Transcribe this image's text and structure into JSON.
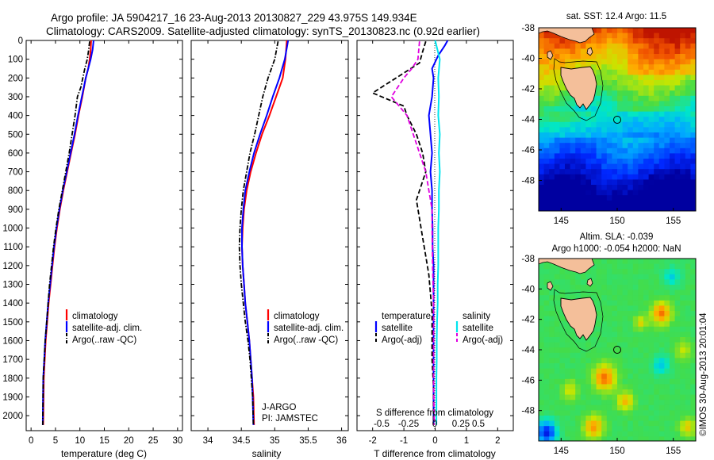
{
  "header": {
    "line1": "Argo profile: JA 5904217_16 23-Aug-2013 20130827_229 43.975S 149.934E",
    "line2": "Climatology: CARS2009. Satellite-adjusted climatology: synTS_20130823.nc (0.92d earlier)"
  },
  "side_stamp": "©IMOS 30-Aug-2013 20:01:04",
  "chart_data": [
    {
      "id": "temperature",
      "type": "line",
      "xlabel": "temperature (deg C)",
      "ylabel": "",
      "xlim": [
        -1,
        31
      ],
      "ylim": [
        2080,
        0
      ],
      "xticks": [
        0,
        5,
        10,
        15,
        20,
        25,
        30
      ],
      "yticks": [
        0,
        100,
        200,
        300,
        400,
        500,
        600,
        700,
        800,
        900,
        1000,
        1100,
        1200,
        1300,
        1400,
        1500,
        1600,
        1700,
        1800,
        1900,
        2000
      ],
      "legend": {
        "placement": "lower-center",
        "entries": [
          "climatology",
          "satellite-adj. clim.",
          "Argo(..raw -QC)"
        ]
      },
      "series": [
        {
          "name": "climatology",
          "color": "#ff0000",
          "style": "solid",
          "x": [
            12.3,
            12.2,
            12.0,
            11.7,
            11.2,
            10.5,
            9.7,
            9.0,
            8.2,
            7.4,
            6.6,
            5.9,
            5.3,
            4.8,
            4.4,
            4.0,
            3.6,
            3.3,
            3.0,
            2.8,
            2.6,
            2.5
          ],
          "y": [
            0,
            50,
            100,
            150,
            200,
            300,
            400,
            500,
            600,
            700,
            800,
            900,
            1000,
            1100,
            1200,
            1300,
            1400,
            1500,
            1600,
            1700,
            1800,
            2050
          ]
        },
        {
          "name": "satellite-adj. clim.",
          "color": "#0000ff",
          "style": "solid",
          "x": [
            12.8,
            12.6,
            12.2,
            11.7,
            11.2,
            10.4,
            9.6,
            8.9,
            8.1,
            7.3,
            6.5,
            5.8,
            5.2,
            4.7,
            4.3,
            3.9,
            3.5,
            3.2,
            2.9,
            2.7,
            2.5,
            2.4
          ],
          "y": [
            0,
            50,
            100,
            150,
            200,
            300,
            400,
            500,
            600,
            700,
            800,
            900,
            1000,
            1100,
            1200,
            1300,
            1400,
            1500,
            1600,
            1700,
            1800,
            2050
          ]
        },
        {
          "name": "Argo(..raw -QC)",
          "color": "#000000",
          "style": "dashdot",
          "x": [
            12.0,
            11.8,
            11.5,
            11.0,
            10.2,
            9.5,
            9.0,
            8.4,
            7.8,
            7.1,
            6.4,
            5.7,
            5.1,
            4.6,
            4.2,
            3.8,
            3.5,
            3.2,
            2.9,
            2.7,
            2.5,
            2.4
          ],
          "y": [
            5,
            50,
            100,
            150,
            250,
            300,
            400,
            500,
            600,
            700,
            800,
            900,
            1000,
            1100,
            1200,
            1300,
            1400,
            1500,
            1600,
            1700,
            1800,
            2050
          ]
        }
      ]
    },
    {
      "id": "salinity",
      "type": "line",
      "xlabel": "salinity",
      "ylabel": "",
      "xlim": [
        33.75,
        36.1
      ],
      "ylim": [
        2080,
        0
      ],
      "xticks": [
        34,
        34.5,
        35,
        35.5,
        36
      ],
      "legend": {
        "placement": "lower-center",
        "entries": [
          "climatology",
          "satellite-adj. clim.",
          "Argo(..raw -QC)"
        ]
      },
      "annotations": [
        "J-ARGO",
        "PI: JAMSTEC"
      ],
      "series": [
        {
          "name": "climatology",
          "color": "#ff0000",
          "style": "solid",
          "x": [
            35.18,
            35.16,
            35.12,
            35.02,
            34.92,
            34.81,
            34.72,
            34.64,
            34.58,
            34.54,
            34.52,
            34.51,
            34.52,
            34.54,
            34.56,
            34.59,
            34.62,
            34.64,
            34.66,
            34.68,
            34.69
          ],
          "y": [
            0,
            100,
            200,
            300,
            400,
            500,
            600,
            700,
            800,
            900,
            1000,
            1100,
            1200,
            1300,
            1400,
            1500,
            1600,
            1700,
            1800,
            1900,
            2050
          ]
        },
        {
          "name": "satellite-adj. clim.",
          "color": "#0000ff",
          "style": "solid",
          "x": [
            35.2,
            35.15,
            35.07,
            34.97,
            34.88,
            34.78,
            34.69,
            34.62,
            34.56,
            34.53,
            34.51,
            34.51,
            34.52,
            34.54,
            34.56,
            34.59,
            34.62,
            34.64,
            34.66,
            34.67,
            34.68
          ],
          "y": [
            0,
            100,
            200,
            300,
            400,
            500,
            600,
            700,
            800,
            900,
            1000,
            1100,
            1200,
            1300,
            1400,
            1500,
            1600,
            1700,
            1800,
            1900,
            2050
          ]
        },
        {
          "name": "Argo(..raw -QC)",
          "color": "#000000",
          "style": "dashdot",
          "x": [
            35.05,
            35.0,
            34.9,
            34.82,
            34.76,
            34.7,
            34.63,
            34.58,
            34.53,
            34.5,
            34.48,
            34.47,
            34.48,
            34.5,
            34.53,
            34.56,
            34.6,
            34.63,
            34.65,
            34.67,
            34.68
          ],
          "y": [
            5,
            100,
            200,
            300,
            400,
            500,
            600,
            700,
            800,
            900,
            1000,
            1100,
            1200,
            1300,
            1400,
            1500,
            1600,
            1700,
            1800,
            1900,
            2050
          ]
        }
      ]
    },
    {
      "id": "difference",
      "type": "line",
      "xlabel": "T difference from climatology",
      "xlabel_top": "S difference from climatology",
      "ylabel": "",
      "xlim": [
        -2.5,
        2.5
      ],
      "ylim": [
        2080,
        0
      ],
      "xticks": [
        -2,
        -1,
        0,
        1,
        2
      ],
      "xticklabels": [
        "-2",
        "-1",
        "0",
        "1",
        "2"
      ],
      "s_ticks": [
        "-0.5",
        "-0.25",
        "0",
        "0.25",
        "0.5"
      ],
      "legend": {
        "placement": "lower-center",
        "headers": [
          "temperature",
          "salinity"
        ],
        "entries": [
          "satellite",
          "Argo(-adj)",
          "satellite",
          "Argo(-adj)"
        ]
      },
      "series": [
        {
          "name": "temperature satellite",
          "color": "#0000ff",
          "style": "solid",
          "x": [
            0.4,
            0.3,
            0.1,
            -0.1,
            -0.05,
            -0.1,
            -0.2,
            -0.15,
            -0.1,
            -0.15,
            -0.1,
            -0.1,
            -0.08,
            -0.08,
            -0.05,
            -0.05,
            -0.05,
            -0.05,
            -0.05,
            -0.05,
            -0.05
          ],
          "y": [
            0,
            30,
            80,
            150,
            200,
            300,
            400,
            500,
            600,
            700,
            800,
            900,
            1000,
            1100,
            1200,
            1300,
            1400,
            1500,
            1600,
            1800,
            2050
          ]
        },
        {
          "name": "temperature Argo(-adj)",
          "color": "#000000",
          "style": "dashed",
          "x": [
            -0.3,
            -0.4,
            -0.5,
            -2.0,
            -1.0,
            -0.9,
            -0.6,
            -0.4,
            -0.3,
            -0.6,
            -0.5,
            -0.4,
            -0.3,
            -0.2,
            -0.15,
            -0.1,
            -0.1,
            -0.1,
            -0.05,
            -0.05
          ],
          "y": [
            5,
            60,
            120,
            280,
            350,
            400,
            500,
            600,
            700,
            850,
            950,
            1050,
            1150,
            1250,
            1350,
            1450,
            1550,
            1700,
            1850,
            2050
          ]
        },
        {
          "name": "salinity satellite",
          "color": "#00e5ee",
          "style": "solid",
          "x": [
            0.0,
            0.15,
            0.1,
            0.12,
            0.1,
            0.15,
            0.12,
            0.15,
            0.12,
            0.12,
            0.1,
            0.1,
            0.1,
            0.08,
            0.08,
            0.06,
            0.05,
            0.05,
            0.04,
            0.04
          ],
          "y": [
            0,
            100,
            200,
            300,
            400,
            500,
            600,
            700,
            800,
            900,
            1000,
            1100,
            1200,
            1300,
            1400,
            1500,
            1600,
            1700,
            1800,
            2050
          ]
        },
        {
          "name": "salinity Argo(-adj)",
          "color": "#e000e0",
          "style": "dashed",
          "x": [
            -0.5,
            -0.55,
            -0.75,
            -1.0,
            -1.4,
            -0.9,
            -0.7,
            -0.5,
            -0.3,
            -0.2,
            -0.1,
            -0.1,
            -0.08,
            -0.05,
            -0.05,
            -0.05,
            -0.03
          ],
          "y": [
            5,
            100,
            150,
            200,
            300,
            400,
            500,
            600,
            700,
            800,
            900,
            1000,
            1200,
            1400,
            1600,
            1800,
            2050
          ]
        }
      ]
    },
    {
      "id": "sst-map",
      "type": "heatmap",
      "title": "sat. SST: 12.4  Argo: 11.5",
      "xlim": [
        143,
        157
      ],
      "ylim": [
        -50,
        -38
      ],
      "xticks": [
        145,
        150,
        155
      ],
      "yticks": [
        -38,
        -40,
        -42,
        -44,
        -46,
        -48
      ],
      "marker": {
        "lon": 149.93,
        "lat": -43.98
      }
    },
    {
      "id": "sla-map",
      "type": "heatmap",
      "title": "Altim. SLA: -0.039",
      "subtitle": "Argo h1000: -0.054  h2000: NaN",
      "xlim": [
        143,
        157
      ],
      "ylim": [
        -50,
        -38
      ],
      "xticks": [
        145,
        150,
        155
      ],
      "yticks": [
        -38,
        -40,
        -42,
        -44,
        -46,
        -48
      ],
      "marker": {
        "lon": 149.93,
        "lat": -43.98
      }
    }
  ]
}
